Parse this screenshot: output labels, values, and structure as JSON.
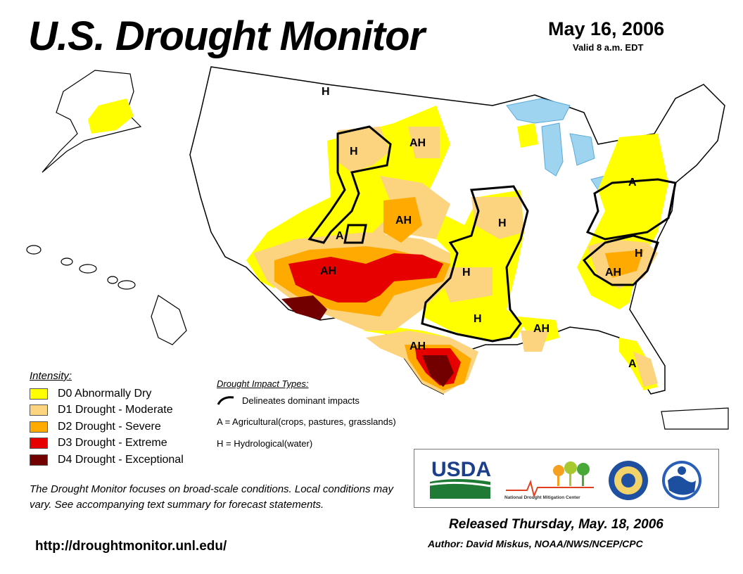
{
  "header": {
    "title": "U.S. Drought Monitor",
    "date": "May 16, 2006",
    "valid": "Valid 8 a.m. EDT"
  },
  "legend": {
    "title": "Intensity:",
    "items": [
      {
        "label": "D0 Abnormally Dry",
        "color": "#ffff00"
      },
      {
        "label": "D1 Drought - Moderate",
        "color": "#fcd37f"
      },
      {
        "label": "D2 Drought - Severe",
        "color": "#ffaa00"
      },
      {
        "label": "D3 Drought - Extreme",
        "color": "#e60000"
      },
      {
        "label": "D4 Drought - Exceptional",
        "color": "#730000"
      }
    ]
  },
  "impact": {
    "title": "Drought Impact Types:",
    "delineates": "Delineates dominant impacts",
    "agricultural": "A = Agricultural(crops, pastures, grasslands)",
    "hydrological": "H = Hydrological(water)"
  },
  "map_labels": {
    "h": "H",
    "a": "A",
    "ah": "AH"
  },
  "note": "The Drought Monitor focuses on broad-scale conditions. Local conditions may vary. See accompanying text summary for forecast statements.",
  "url": "http://droughtmonitor.unl.edu/",
  "logos": {
    "usda": "USDA",
    "ndmc": "National Drought Mitigation Center"
  },
  "released": "Released Thursday, May. 18, 2006",
  "author": "Author: David Miskus, NOAA/NWS/NCEP/CPC"
}
